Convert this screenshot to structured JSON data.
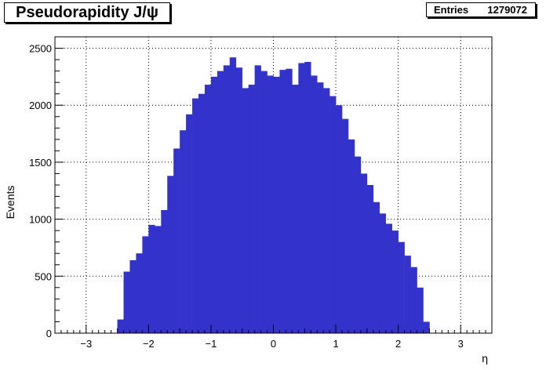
{
  "title": "Pseudorapidity J/ψ",
  "stats": {
    "label": "Entries",
    "value": "1279072"
  },
  "colors": {
    "fill": "#3333cc",
    "frame": "#000000",
    "grid": "#000000"
  },
  "chart_data": {
    "type": "bar",
    "title": "Pseudorapidity J/ψ",
    "xlabel": "η",
    "ylabel": "Events",
    "xlim": [
      -3.5,
      3.5
    ],
    "ylim": [
      0,
      2600
    ],
    "grid": true,
    "x_ticks": [
      -3,
      -2,
      -1,
      0,
      1,
      2,
      3
    ],
    "x_tick_labels": [
      "−3",
      "−2",
      "−1",
      "0",
      "1",
      "2",
      "3"
    ],
    "y_ticks": [
      0,
      500,
      1000,
      1500,
      2000,
      2500
    ],
    "y_tick_labels": [
      "0",
      "500",
      "1000",
      "1500",
      "2000",
      "2500"
    ],
    "bin_width": 0.1,
    "x": [
      -2.45,
      -2.35,
      -2.25,
      -2.15,
      -2.05,
      -1.95,
      -1.85,
      -1.75,
      -1.65,
      -1.55,
      -1.45,
      -1.35,
      -1.25,
      -1.15,
      -1.05,
      -0.95,
      -0.85,
      -0.75,
      -0.65,
      -0.55,
      -0.45,
      -0.35,
      -0.25,
      -0.15,
      -0.05,
      0.05,
      0.15,
      0.25,
      0.35,
      0.45,
      0.55,
      0.65,
      0.75,
      0.85,
      0.95,
      1.05,
      1.15,
      1.25,
      1.35,
      1.45,
      1.55,
      1.65,
      1.75,
      1.85,
      1.95,
      2.05,
      2.15,
      2.25,
      2.35,
      2.45
    ],
    "values": [
      120,
      540,
      640,
      700,
      850,
      950,
      940,
      1080,
      1380,
      1620,
      1780,
      1920,
      2060,
      2100,
      2180,
      2250,
      2300,
      2350,
      2420,
      2330,
      2150,
      2180,
      2350,
      2300,
      2260,
      2250,
      2310,
      2320,
      2180,
      2370,
      2380,
      2260,
      2200,
      2150,
      2080,
      2000,
      1880,
      1700,
      1550,
      1400,
      1300,
      1150,
      1050,
      960,
      900,
      800,
      680,
      580,
      400,
      100
    ]
  }
}
